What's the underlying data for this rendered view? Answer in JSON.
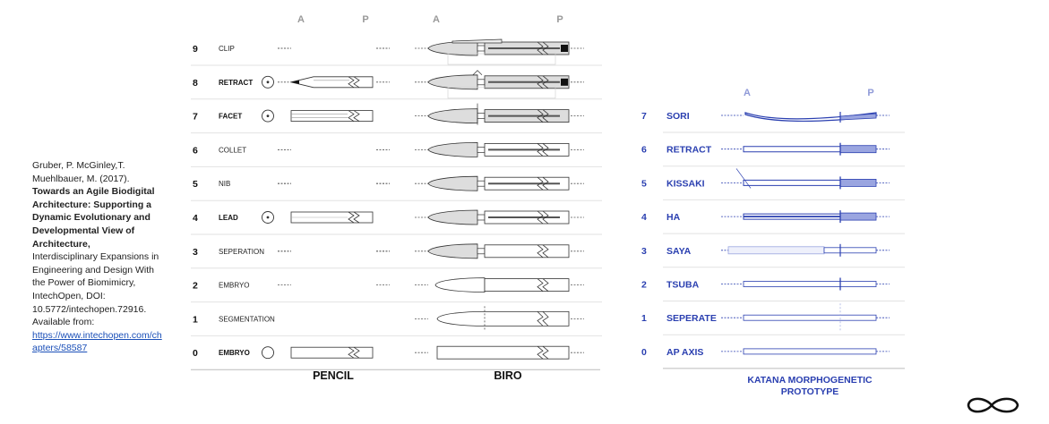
{
  "citation": {
    "authors": "Gruber, P. McGinley,T. Muehlbauer, M. (2017).",
    "title": "Towards an Agile Biodigital Architecture: Supporting a Dynamic Evolutionary and Developmental View of Architecture,",
    "source": "Interdisciplinary Expansions in Engineering and Design With the Power of Biomimicry, IntechOpen, DOI: 10.5772/intechopen.72916. Available from:",
    "link": "https://www.intechopen.com/chapters/58587"
  },
  "left_axis": {
    "a": "A",
    "p": "P"
  },
  "left_rows": [
    {
      "num": "9",
      "label": "CLIP"
    },
    {
      "num": "8",
      "label": "RETRACT"
    },
    {
      "num": "7",
      "label": "FACET"
    },
    {
      "num": "6",
      "label": "COLLET"
    },
    {
      "num": "5",
      "label": "NIB"
    },
    {
      "num": "4",
      "label": "LEAD"
    },
    {
      "num": "3",
      "label": "SEPERATION"
    },
    {
      "num": "2",
      "label": "EMBRYO"
    },
    {
      "num": "1",
      "label": "SEGMENTATION"
    },
    {
      "num": "0",
      "label": "EMBRYO"
    }
  ],
  "footer": {
    "pencil": "PENCIL",
    "biro": "BIRO",
    "katana_1": "KATANA MORPHOGENETIC",
    "katana_2": "PROTOTYPE"
  },
  "katana_axis": {
    "a": "A",
    "p": "P"
  },
  "katana_rows": [
    {
      "num": "7",
      "label": "SORI"
    },
    {
      "num": "6",
      "label": "RETRACT"
    },
    {
      "num": "5",
      "label": "KISSAKI"
    },
    {
      "num": "4",
      "label": "HA"
    },
    {
      "num": "3",
      "label": "SAYA"
    },
    {
      "num": "2",
      "label": "TSUBA"
    },
    {
      "num": "1",
      "label": "SEPERATE"
    },
    {
      "num": "0",
      "label": "AP AXIS"
    }
  ],
  "colors": {
    "blue": "#2a3fb0",
    "light_blue": "#9aa5e0",
    "grey_fill": "#dddddd"
  },
  "icons": [
    "infinity-logo-icon"
  ]
}
